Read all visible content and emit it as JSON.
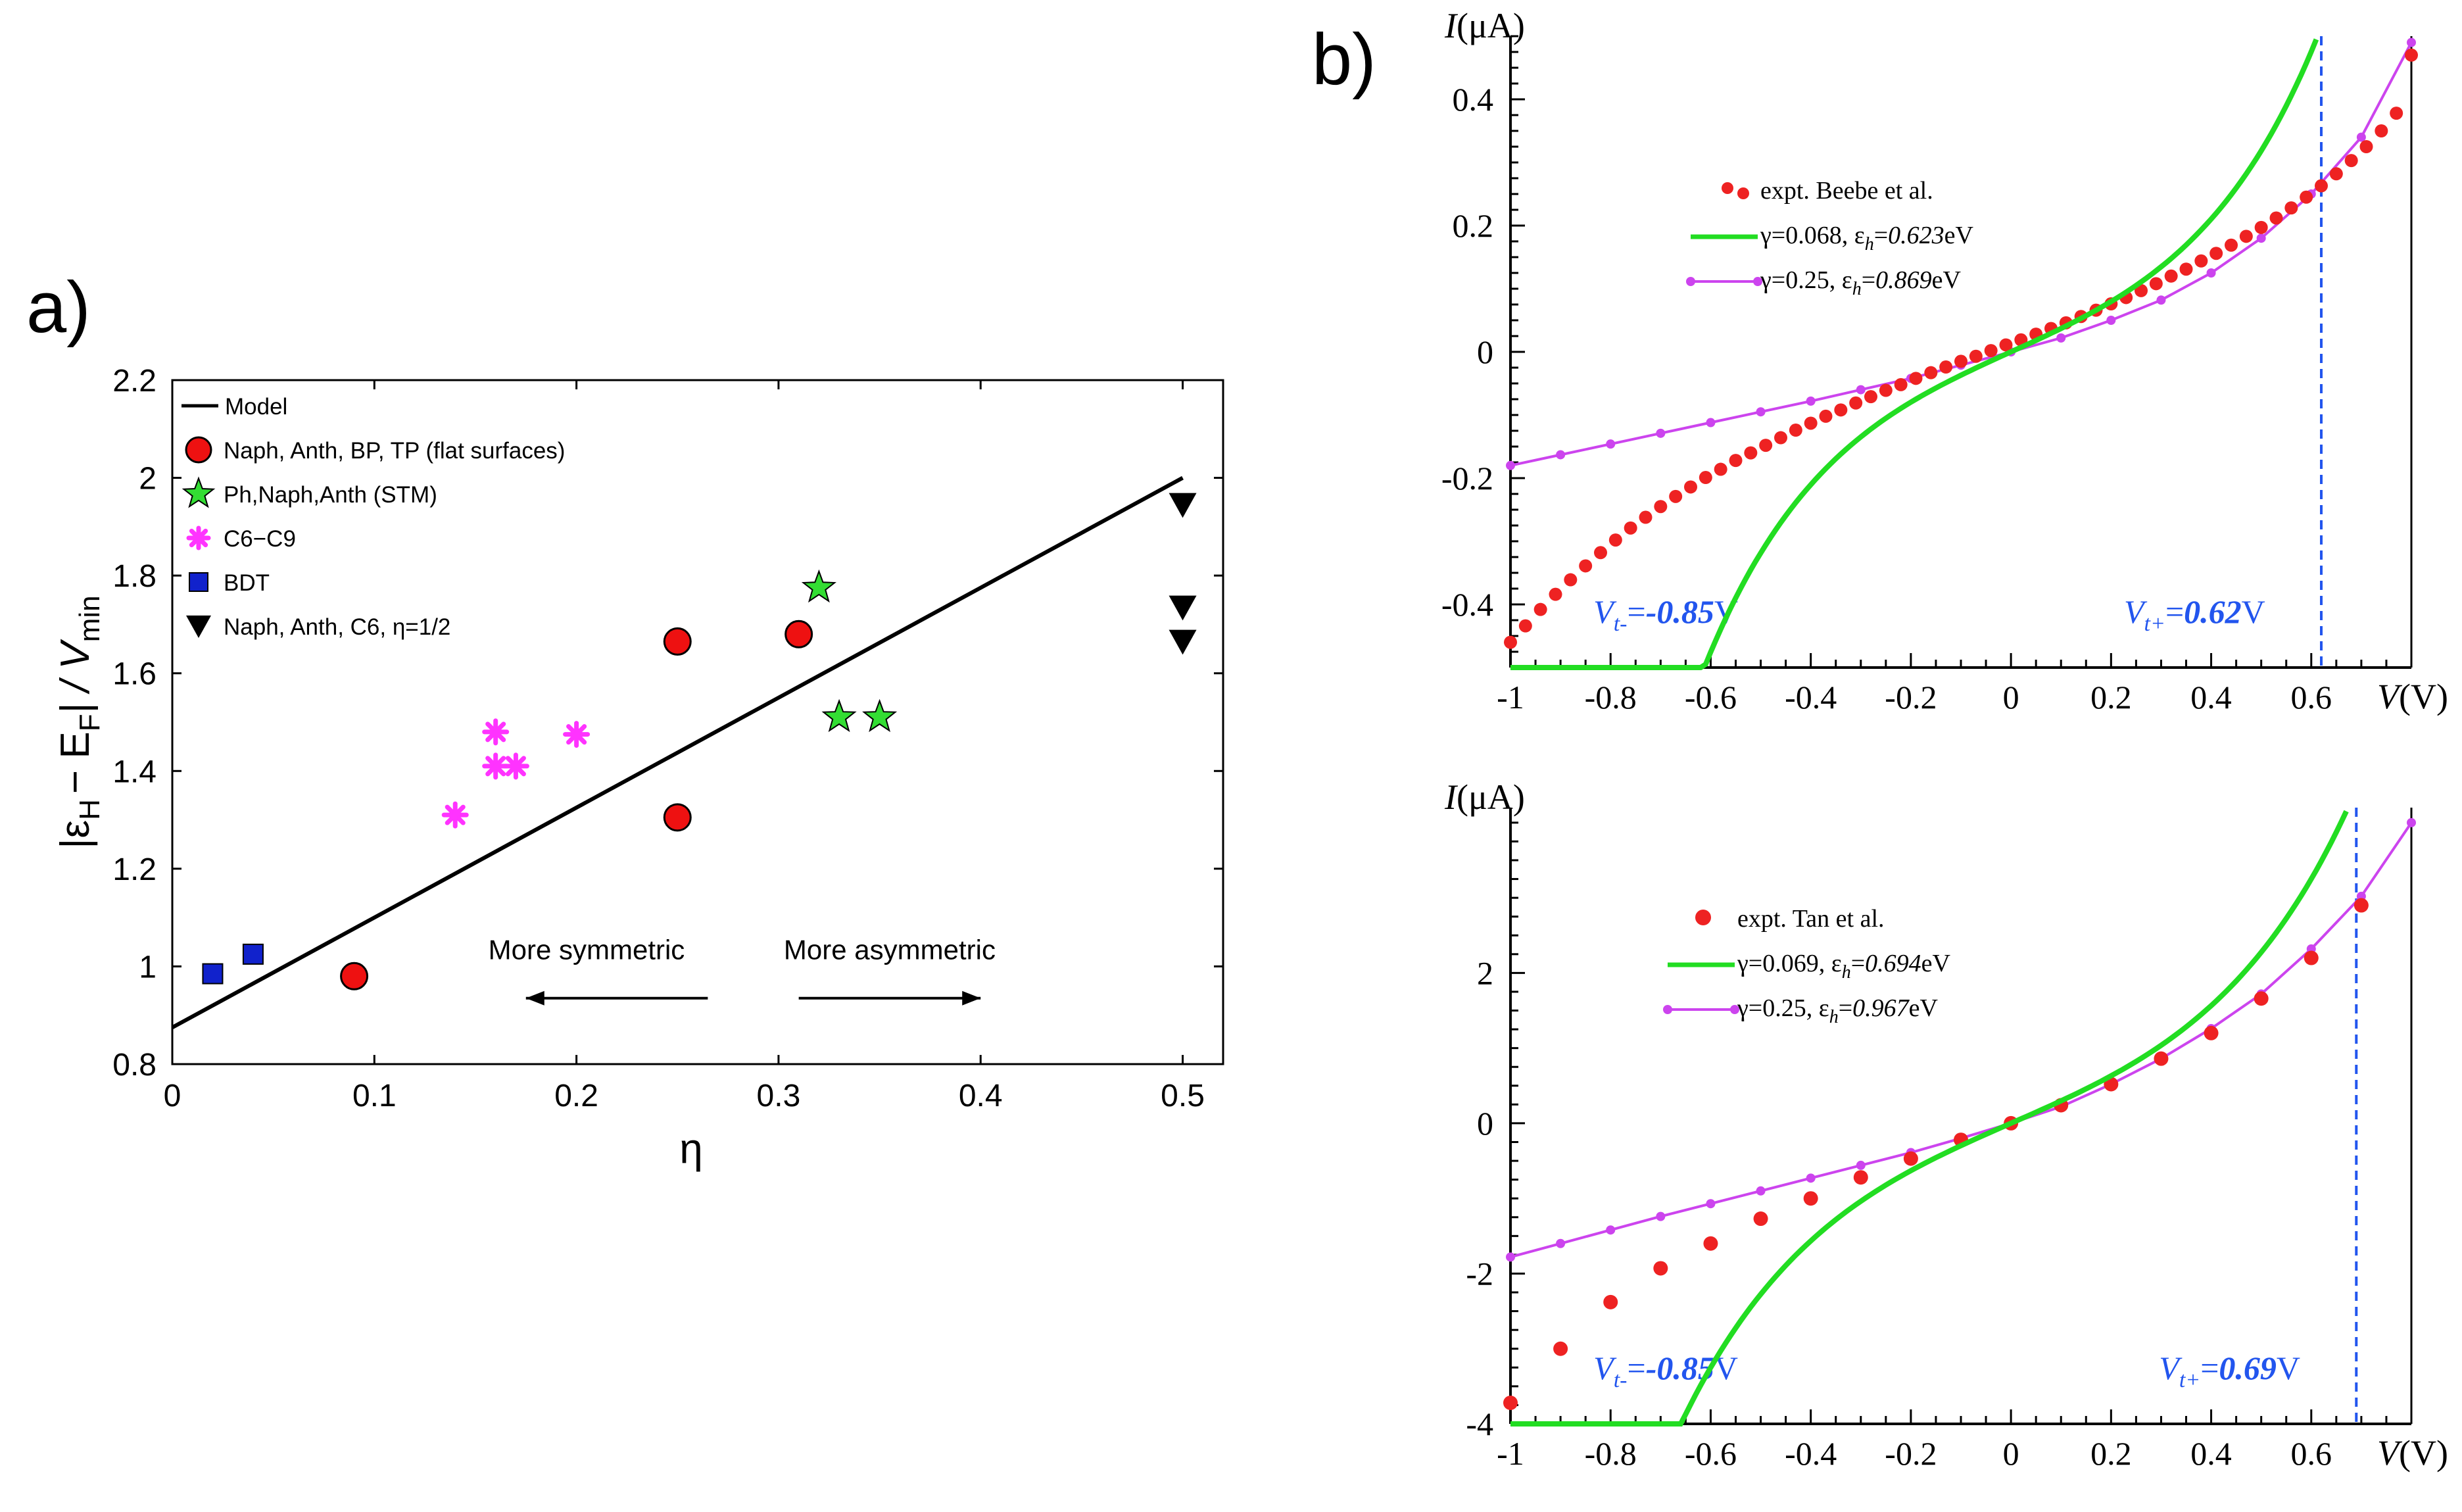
{
  "panel_labels": {
    "a": "a)",
    "b": "b)"
  },
  "chart_data": [
    {
      "id": "a",
      "type": "scatter",
      "xlabel": "η",
      "ylabel": {
        "pre": "|ε",
        "sub1": "H",
        "mid": "− E",
        "sub2": "F",
        "post": "| / V",
        "sub3": "min"
      },
      "xlim": [
        0,
        0.52
      ],
      "ylim": [
        0.8,
        2.2
      ],
      "xticks": [
        0,
        0.1,
        0.2,
        0.3,
        0.4,
        0.5
      ],
      "yticks": [
        0.8,
        1,
        1.2,
        1.4,
        1.6,
        1.8,
        2,
        2.2
      ],
      "xtick_labels": [
        "0",
        "0.1",
        "0.2",
        "0.3",
        "0.4",
        "0.5"
      ],
      "ytick_labels": [
        "0.8",
        "1",
        "1.2",
        "1.4",
        "1.6",
        "1.8",
        "2",
        "2.2"
      ],
      "legend_position": "top-left",
      "annotations": [
        {
          "text": "More symmetric",
          "x": 0.205,
          "y": 1.015,
          "arrow_from": 0.265,
          "arrow_to": 0.175,
          "arrow_y": 0.935
        },
        {
          "text": "More asymmetric",
          "x": 0.355,
          "y": 1.015,
          "arrow_from": 0.31,
          "arrow_to": 0.4,
          "arrow_y": 0.935
        }
      ],
      "series": [
        {
          "name": "Model",
          "kind": "line",
          "color": "#000000",
          "x": [
            0,
            0.5
          ],
          "y": [
            0.875,
            2.0
          ]
        },
        {
          "name": "Naph, Anth, BP, TP (flat surfaces)",
          "kind": "circle",
          "color": "#ee1111",
          "x": [
            0.09,
            0.25,
            0.25,
            0.31
          ],
          "y": [
            0.98,
            1.665,
            1.305,
            1.68
          ]
        },
        {
          "name": "Ph,Naph,Anth (STM)",
          "kind": "star",
          "color": "#33dd33",
          "x": [
            0.32,
            0.33,
            0.35
          ],
          "y": [
            1.775,
            1.51,
            1.51
          ]
        },
        {
          "name": "C6−C9",
          "kind": "asterisk",
          "color": "#ff33ff",
          "x": [
            0.14,
            0.16,
            0.16,
            0.17,
            0.2
          ],
          "y": [
            1.31,
            1.48,
            1.41,
            1.41,
            1.475
          ]
        },
        {
          "name": "BDT",
          "kind": "square",
          "color": "#1122cc",
          "x": [
            0.02,
            0.04
          ],
          "y": [
            0.985,
            1.025
          ]
        },
        {
          "name": "Naph, Anth, C6, η=1/2",
          "kind": "triangle",
          "color": "#000000",
          "x": [
            0.5,
            0.5,
            0.5
          ],
          "y": [
            1.945,
            1.735,
            1.665
          ]
        }
      ]
    },
    {
      "id": "b-top",
      "type": "line",
      "xlim": [
        -1,
        0.8
      ],
      "ylim": [
        -0.5,
        0.5
      ],
      "xticks": [
        -1,
        -0.8,
        -0.6,
        -0.4,
        -0.2,
        0,
        0.2,
        0.4,
        0.6
      ],
      "xtick_labels": [
        "-1",
        "-0.8",
        "-0.6",
        "-0.4",
        "-0.2",
        "0",
        "0.2",
        "0.4",
        "0.6"
      ],
      "yticks": [
        -0.4,
        -0.2,
        0,
        0.2,
        0.4
      ],
      "ytick_labels": [
        "-0.4",
        "-0.2",
        "0",
        "0.2",
        "0.4"
      ],
      "xlabel": {
        "main": "V",
        "unit": "(V)"
      },
      "ylabel": {
        "main": "I",
        "unit": "(μA)"
      },
      "legend": [
        {
          "kind": "dots",
          "color": "#ee2222",
          "label": {
            "pre": "expt. Beebe et al."
          }
        },
        {
          "kind": "line",
          "color": "#22dd22",
          "label": {
            "pre": "γ=0.068, ε",
            "sub": "h",
            "eq": "=",
            "val": "0.623",
            "unit": "eV"
          }
        },
        {
          "kind": "dotline",
          "color": "#cc44ee",
          "label": {
            "pre": "γ=0.25, ε",
            "sub": "h",
            "eq": "=",
            "val": "0.869",
            "unit": "eV"
          }
        }
      ],
      "vlines": [
        {
          "x": -0.85,
          "label": {
            "v": "V",
            "sub": "t-",
            "eq": "=",
            "val": "-0.85",
            "unit": "V"
          }
        },
        {
          "x": 0.62,
          "label": {
            "v": "V",
            "sub": "t+",
            "eq": "=",
            "val": "0.62",
            "unit": "V"
          }
        }
      ],
      "model_green": {
        "a": 0.0925,
        "b": 3.9
      },
      "model_magenta": {
        "x": [
          -1,
          -0.9,
          -0.8,
          -0.7,
          -0.6,
          -0.5,
          -0.4,
          -0.3,
          -0.2,
          -0.1,
          0,
          0.1,
          0.2,
          0.3,
          0.4,
          0.5,
          0.6,
          0.7,
          0.8
        ],
        "y": [
          -0.18,
          -0.163,
          -0.146,
          -0.129,
          -0.112,
          -0.095,
          -0.078,
          -0.06,
          -0.042,
          -0.021,
          0,
          0.022,
          0.05,
          0.082,
          0.125,
          0.18,
          0.25,
          0.34,
          0.49
        ]
      },
      "experiment": {
        "x": [
          -1,
          -0.97,
          -0.94,
          -0.91,
          -0.88,
          -0.85,
          -0.82,
          -0.79,
          -0.76,
          -0.73,
          -0.7,
          -0.67,
          -0.64,
          -0.61,
          -0.58,
          -0.55,
          -0.52,
          -0.49,
          -0.46,
          -0.43,
          -0.4,
          -0.37,
          -0.34,
          -0.31,
          -0.28,
          -0.25,
          -0.22,
          -0.19,
          -0.16,
          -0.13,
          -0.1,
          -0.07,
          -0.04,
          -0.01,
          0.02,
          0.05,
          0.08,
          0.11,
          0.14,
          0.17,
          0.2,
          0.23,
          0.26,
          0.29,
          0.32,
          0.35,
          0.38,
          0.41,
          0.44,
          0.47,
          0.5,
          0.53,
          0.56,
          0.59,
          0.62,
          0.65,
          0.68,
          0.71,
          0.74,
          0.77,
          0.8
        ],
        "y": [
          -0.46,
          -0.434,
          -0.408,
          -0.384,
          -0.361,
          -0.339,
          -0.318,
          -0.298,
          -0.279,
          -0.262,
          -0.245,
          -0.229,
          -0.214,
          -0.199,
          -0.186,
          -0.172,
          -0.16,
          -0.148,
          -0.136,
          -0.124,
          -0.113,
          -0.102,
          -0.092,
          -0.081,
          -0.071,
          -0.061,
          -0.052,
          -0.042,
          -0.033,
          -0.024,
          -0.015,
          -0.007,
          0.002,
          0.011,
          0.019,
          0.028,
          0.037,
          0.046,
          0.056,
          0.066,
          0.076,
          0.086,
          0.097,
          0.108,
          0.12,
          0.131,
          0.144,
          0.156,
          0.169,
          0.183,
          0.197,
          0.212,
          0.228,
          0.245,
          0.263,
          0.282,
          0.303,
          0.325,
          0.35,
          0.378,
          0.47
        ]
      }
    },
    {
      "id": "b-bottom",
      "type": "line",
      "xlim": [
        -1,
        0.8
      ],
      "ylim": [
        -4,
        4.2
      ],
      "xticks": [
        -1,
        -0.8,
        -0.6,
        -0.4,
        -0.2,
        0,
        0.2,
        0.4,
        0.6
      ],
      "xtick_labels": [
        "-1",
        "-0.8",
        "-0.6",
        "-0.4",
        "-0.2",
        "0",
        "0.2",
        "0.4",
        "0.6"
      ],
      "yticks": [
        -4,
        -2,
        0,
        2
      ],
      "ytick_labels": [
        "-4",
        "-2",
        "0",
        "2"
      ],
      "xlabel": {
        "main": "V",
        "unit": "(V)"
      },
      "ylabel": {
        "main": "I",
        "unit": "(μA)"
      },
      "legend": [
        {
          "kind": "dot",
          "color": "#ee2222",
          "label": {
            "pre": "expt. Tan et al."
          }
        },
        {
          "kind": "line",
          "color": "#22dd22",
          "label": {
            "pre": "γ=0.069, ε",
            "sub": "h",
            "eq": "=",
            "val": "0.694",
            "unit": "eV"
          }
        },
        {
          "kind": "dotline",
          "color": "#cc44ee",
          "label": {
            "pre": "γ=0.25, ε",
            "sub": "h",
            "eq": "=",
            "val": "0.967",
            "unit": "eV"
          }
        }
      ],
      "vlines": [
        {
          "x": -0.85,
          "label": {
            "v": "V",
            "sub": "t-",
            "eq": "=",
            "val": "-0.85",
            "unit": "V"
          }
        },
        {
          "x": 0.69,
          "label": {
            "v": "V",
            "sub": "t+",
            "eq": "=",
            "val": "0.69",
            "unit": "V"
          }
        }
      ],
      "model_green": {
        "a": 0.86,
        "b": 3.4
      },
      "model_magenta": {
        "x": [
          -1,
          -0.9,
          -0.8,
          -0.7,
          -0.6,
          -0.5,
          -0.4,
          -0.3,
          -0.2,
          -0.1,
          0,
          0.1,
          0.2,
          0.3,
          0.4,
          0.5,
          0.6,
          0.7,
          0.8
        ],
        "y": [
          -1.78,
          -1.6,
          -1.42,
          -1.24,
          -1.07,
          -0.9,
          -0.73,
          -0.56,
          -0.39,
          -0.2,
          0,
          0.22,
          0.52,
          0.86,
          1.26,
          1.72,
          2.32,
          3.02,
          4.0
        ]
      },
      "experiment": {
        "x": [
          -1,
          -0.9,
          -0.8,
          -0.7,
          -0.6,
          -0.5,
          -0.4,
          -0.3,
          -0.2,
          -0.1,
          0,
          0.1,
          0.2,
          0.3,
          0.4,
          0.5,
          0.6,
          0.7
        ],
        "y": [
          -3.72,
          -3.0,
          -2.38,
          -1.93,
          -1.6,
          -1.27,
          -1.0,
          -0.72,
          -0.47,
          -0.22,
          0,
          0.24,
          0.52,
          0.86,
          1.2,
          1.66,
          2.2,
          2.9
        ]
      }
    }
  ]
}
